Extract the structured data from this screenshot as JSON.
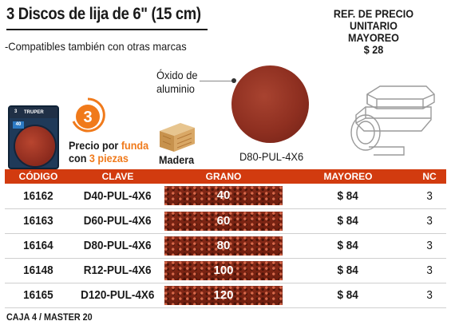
{
  "header": {
    "title": "3 Discos de lija de 6\" (15 cm)",
    "subtitle": "-Compatibles también con otras marcas"
  },
  "ref": {
    "line1": "REF. DE PRECIO UNITARIO",
    "line2": "MAYOREO",
    "price": "$ 28"
  },
  "package": {
    "brand": "TRUPER",
    "grit": "40",
    "count": "3"
  },
  "badge": {
    "number": "3",
    "precio_line1_a": "Precio por ",
    "precio_line1_b": "funda",
    "precio_line2_a": "con ",
    "precio_line2_b": "3 piezas"
  },
  "material": {
    "wood_label": "Madera",
    "oxide_line1": "Óxido de",
    "oxide_line2": "aluminio",
    "disc_code": "D80-PUL-4X6"
  },
  "table": {
    "headers": [
      "CÓDIGO",
      "CLAVE",
      "GRANO",
      "MAYOREO",
      "NC"
    ],
    "rows": [
      {
        "codigo": "16162",
        "clave": "D40-PUL-4X6",
        "grano": "40",
        "mayoreo": "$ 84",
        "nc": "3"
      },
      {
        "codigo": "16163",
        "clave": "D60-PUL-4X6",
        "grano": "60",
        "mayoreo": "$ 84",
        "nc": "3"
      },
      {
        "codigo": "16164",
        "clave": "D80-PUL-4X6",
        "grano": "80",
        "mayoreo": "$ 84",
        "nc": "3"
      },
      {
        "codigo": "16148",
        "clave": "R12-PUL-4X6",
        "grano": "100",
        "mayoreo": "$ 84",
        "nc": "3"
      },
      {
        "codigo": "16165",
        "clave": "D120-PUL-4X6",
        "grano": "120",
        "mayoreo": "$ 84",
        "nc": "3"
      }
    ]
  },
  "footer": {
    "caja": "CAJA 4 / MASTER 20"
  },
  "colors": {
    "accent": "#d23b0f",
    "orange": "#f07a1b",
    "disc": "#8e2f20"
  },
  "icons": [
    "sandpaper-pack-icon",
    "number-badge-icon",
    "wood-plank-icon",
    "sanding-disc-icon",
    "sander-tool-icon"
  ]
}
